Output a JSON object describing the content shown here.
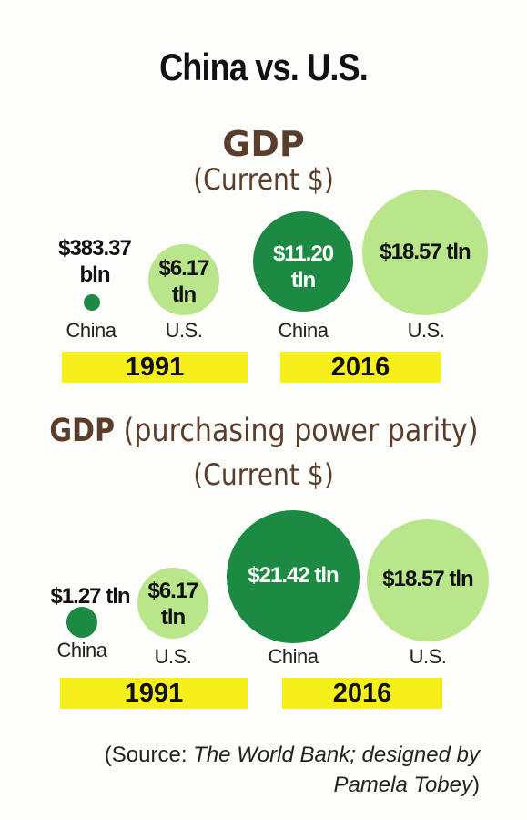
{
  "title": "China vs. U.S.",
  "chart_data": [
    {
      "type": "bubble",
      "title": "GDP",
      "subtitle": "(Current $)",
      "groups": [
        {
          "year": "1991",
          "items": [
            {
              "country": "China",
              "value_label": "$383.37 bln",
              "value_usd_trillion": 0.38337
            },
            {
              "country": "U.S.",
              "value_label": "$6.17 tln",
              "value_usd_trillion": 6.17
            }
          ]
        },
        {
          "year": "2016",
          "items": [
            {
              "country": "China",
              "value_label": "$11.20 tln",
              "value_usd_trillion": 11.2
            },
            {
              "country": "U.S.",
              "value_label": "$18.57 tln",
              "value_usd_trillion": 18.57
            }
          ]
        }
      ]
    },
    {
      "type": "bubble",
      "title_bold": "GDP",
      "title_rest": "(purchasing power parity)",
      "subtitle": "(Current $)",
      "groups": [
        {
          "year": "1991",
          "items": [
            {
              "country": "China",
              "value_label": "$1.27 tln",
              "value_usd_trillion": 1.27
            },
            {
              "country": "U.S.",
              "value_label": "$6.17 tln",
              "value_usd_trillion": 6.17
            }
          ]
        },
        {
          "year": "2016",
          "items": [
            {
              "country": "China",
              "value_label": "$21.42 tln",
              "value_usd_trillion": 21.42
            },
            {
              "country": "U.S.",
              "value_label": "$18.57 tln",
              "value_usd_trillion": 18.57
            }
          ]
        }
      ]
    }
  ],
  "labels": {
    "gdp_china_1991_line1": "$383.37",
    "gdp_china_1991_line2": "bln",
    "gdp_us_1991_line1": "$6.17",
    "gdp_us_1991_line2": "tln",
    "gdp_china_2016_line1": "$11.20",
    "gdp_china_2016_line2": "tln",
    "gdp_us_2016": "$18.57 tln",
    "ppp_china_1991": "$1.27 tln",
    "ppp_us_1991_line1": "$6.17",
    "ppp_us_1991_line2": "tln",
    "ppp_china_2016": "$21.42 tln",
    "ppp_us_2016": "$18.57 tln"
  },
  "colors": {
    "china": "#1c8a43",
    "us": "#b9e68a",
    "year_band": "#f7ef1b",
    "section_title": "#5a3e2b"
  },
  "source": {
    "prefix": "(Source: ",
    "italic": "The World Bank; designed by Pamela Tobey",
    "suffix": ")"
  }
}
